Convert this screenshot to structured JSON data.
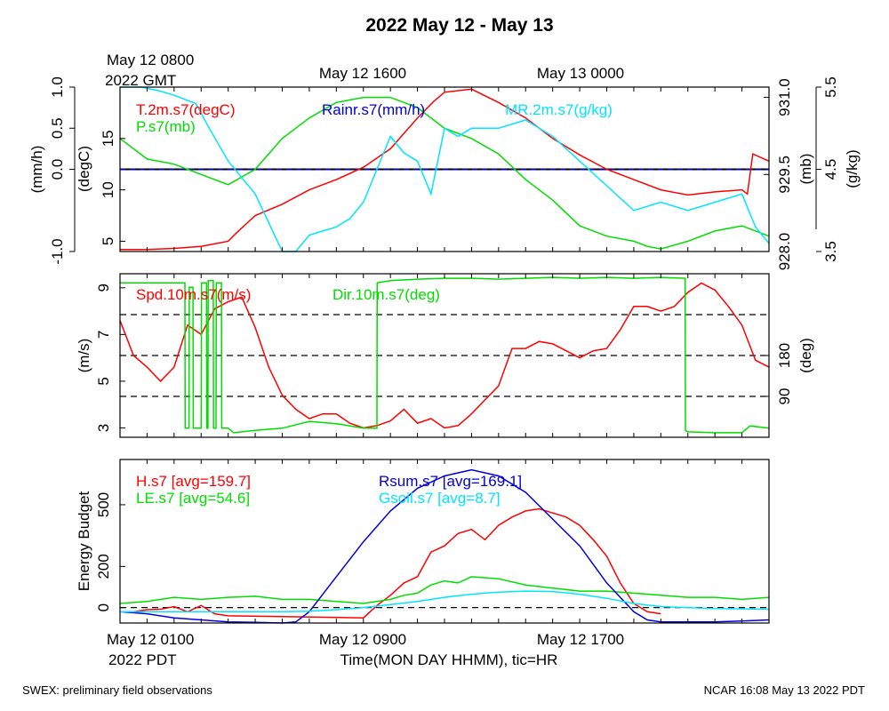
{
  "title": "2022 May 12 - May 13",
  "top_time_labels": {
    "first_line1": "May 12 0800",
    "first_line2": "2022 GMT",
    "second": "May 12 1600",
    "third": "May 13 0000"
  },
  "bottom_time_labels": {
    "first_line1": "May 12 0100",
    "first_line2": "2022 PDT",
    "second": "May 12 0900",
    "third": "May 12 1700"
  },
  "xlabel": "Time(MON DAY HHMM), tic=HR",
  "footer_left": "SWEX: preliminary field observations",
  "footer_right": "NCAR 16:08 May 13 2022 PDT",
  "colors": {
    "red": "#ff0000",
    "green": "#00dd00",
    "blue": "#0000dd",
    "cyan": "#00e5ff",
    "black": "#000000"
  },
  "chart_data": [
    {
      "type": "line",
      "panel": "top",
      "x_unit": "hours since May 12 0100 PDT",
      "xlim": [
        0,
        24
      ],
      "axes": {
        "rain": {
          "label": "(mm/h)",
          "ylim": [
            -1.0,
            1.0
          ],
          "ticks": [
            "-1.0",
            "0.0",
            "0.5",
            "1.0"
          ]
        },
        "temp": {
          "label": "(degC)",
          "ylim": [
            4,
            20
          ],
          "ticks": [
            "5",
            "10",
            "15"
          ]
        },
        "pres": {
          "label": "(mb)",
          "ylim": [
            928.0,
            931.2
          ],
          "ticks": [
            "928.0",
            "929.5",
            "931.0"
          ]
        },
        "mr": {
          "label": "(g/kg)",
          "ylim": [
            3.5,
            5.5
          ],
          "ticks": [
            "3.5",
            "4.5",
            "5.5"
          ]
        }
      },
      "series": [
        {
          "name": "T.2m.s7(degC)",
          "color": "red",
          "axis": "temp",
          "x": [
            0,
            1,
            2,
            3,
            4,
            4.3,
            5,
            6,
            7,
            8,
            9,
            10,
            11,
            11.6,
            12,
            13,
            14,
            15,
            16,
            17,
            18,
            19,
            20,
            21,
            22,
            23,
            23.2,
            23.4,
            24
          ],
          "y": [
            4.2,
            4.2,
            4.3,
            4.5,
            5,
            5.8,
            7.5,
            8.6,
            10,
            11,
            12.2,
            14,
            17,
            18.6,
            19.5,
            19.8,
            18.5,
            17,
            15,
            13.4,
            12,
            11,
            10,
            9.5,
            9.8,
            10,
            9.6,
            13.5,
            12.8
          ]
        },
        {
          "name": "P.s7(mb)",
          "color": "green",
          "axis": "pres",
          "x": [
            0,
            1,
            2,
            3,
            4,
            5,
            6,
            7,
            8,
            9,
            10,
            11,
            12,
            13,
            14,
            15,
            16,
            17,
            18,
            19,
            19.5,
            20,
            21,
            22,
            23,
            24
          ],
          "y": [
            930.2,
            929.8,
            929.7,
            929.5,
            929.3,
            929.6,
            930.2,
            930.6,
            930.9,
            931.0,
            931.0,
            930.8,
            930.4,
            930.2,
            929.9,
            929.4,
            929.0,
            928.5,
            928.3,
            928.2,
            928.1,
            928.05,
            928.2,
            928.4,
            928.5,
            928.3
          ]
        },
        {
          "name": "Rainr.s7(mm/h)",
          "color": "blue",
          "axis": "rain",
          "x": [
            0,
            24
          ],
          "y": [
            0,
            0
          ]
        },
        {
          "name": "MR.2m.s7(g/kg)",
          "color": "cyan",
          "axis": "mr",
          "x": [
            0,
            0.8,
            1.5,
            2,
            2.8,
            3.3,
            4,
            5,
            6,
            6.5,
            7,
            7.5,
            8,
            8.5,
            9,
            9.5,
            10,
            10.5,
            11,
            11.5,
            12,
            12.5,
            13,
            14,
            15,
            16,
            17,
            18,
            19,
            20,
            21,
            22,
            23,
            23.5,
            24
          ],
          "y": [
            5.5,
            5.5,
            5.45,
            5.4,
            5.3,
            5.0,
            4.6,
            4.2,
            3.5,
            3.5,
            3.7,
            3.75,
            3.8,
            3.9,
            4.1,
            4.5,
            4.9,
            4.7,
            4.6,
            4.2,
            5.0,
            4.9,
            5.0,
            5.0,
            5.1,
            4.9,
            4.6,
            4.3,
            4.0,
            4.1,
            4.0,
            4.1,
            4.2,
            3.8,
            3.6
          ]
        }
      ]
    },
    {
      "type": "line",
      "panel": "middle",
      "x_unit": "hours since May 12 0100 PDT",
      "xlim": [
        0,
        24
      ],
      "axes": {
        "spd": {
          "label": "(m/s)",
          "ylim": [
            2.6,
            9.6
          ],
          "ticks": [
            "3",
            "5",
            "7",
            "9"
          ]
        },
        "dir": {
          "label": "(deg)",
          "ylim": [
            0,
            360
          ],
          "ticks": [
            "90",
            "180"
          ]
        }
      },
      "reference_lines": {
        "dir_deg": [
          90,
          180,
          270
        ]
      },
      "series": [
        {
          "name": "Spd.10m.s7(m/s)",
          "color": "red",
          "axis": "spd",
          "x": [
            0,
            0.5,
            1,
            1.5,
            2,
            2.5,
            3,
            3.5,
            4,
            4.5,
            5,
            5.5,
            6,
            6.5,
            7,
            7.5,
            8,
            8.5,
            9,
            9.5,
            10,
            10.5,
            11,
            11.5,
            12,
            12.5,
            13,
            13.5,
            14,
            14.5,
            15,
            15.5,
            16,
            16.5,
            17,
            17.5,
            18,
            18.5,
            19,
            19.5,
            20,
            20.5,
            21,
            21.5,
            22,
            22.5,
            23,
            23.5,
            24
          ],
          "y": [
            7.6,
            6.1,
            5.6,
            5.0,
            5.6,
            7.4,
            7.0,
            8.1,
            8.4,
            8.6,
            7.3,
            5.6,
            4.4,
            3.8,
            3.4,
            3.6,
            3.6,
            3.2,
            3.0,
            3.1,
            3.3,
            3.8,
            3.2,
            3.4,
            3.0,
            3.1,
            3.6,
            4.2,
            4.8,
            6.4,
            6.4,
            6.7,
            6.6,
            6.3,
            6.0,
            6.3,
            6.4,
            7.2,
            8.2,
            8.2,
            8.0,
            8.2,
            8.8,
            9.2,
            8.9,
            8.2,
            7.4,
            5.9,
            5.6
          ]
        },
        {
          "name": "Dir.10m.s7(deg)",
          "color": "green",
          "axis": "dir",
          "x": [
            0,
            2.4,
            2.41,
            2.55,
            2.56,
            2.7,
            2.71,
            3,
            3.01,
            3.2,
            3.21,
            3.25,
            3.26,
            3.45,
            3.46,
            3.55,
            3.56,
            3.75,
            3.76,
            4,
            4.2,
            5,
            6,
            7,
            8,
            9,
            9.5,
            9.51,
            10,
            11,
            12,
            13,
            14,
            15,
            16,
            17,
            18,
            19,
            20,
            20.9,
            20.91,
            21,
            22,
            23,
            23.3,
            24
          ],
          "y": [
            340,
            340,
            20,
            20,
            330,
            330,
            20,
            20,
            340,
            340,
            20,
            20,
            345,
            345,
            20,
            20,
            340,
            340,
            20,
            20,
            10,
            15,
            20,
            35,
            30,
            20,
            20,
            340,
            345,
            348,
            350,
            350,
            348,
            350,
            352,
            350,
            352,
            350,
            352,
            350,
            15,
            12,
            10,
            10,
            25,
            20
          ]
        }
      ]
    },
    {
      "type": "line",
      "panel": "bottom",
      "x_unit": "hours since May 12 0100 PDT",
      "xlim": [
        0,
        24
      ],
      "ylabel": "Energy Budget",
      "ylim": [
        -75,
        720
      ],
      "yticks": [
        "0",
        "200",
        "500"
      ],
      "series": [
        {
          "name": "H.s7 [avg=159.7]",
          "color": "red",
          "x": [
            0.5,
            1,
            1.5,
            2,
            2.5,
            3,
            3.5,
            4,
            9,
            9.5,
            10,
            10.5,
            11,
            11.5,
            12,
            12.5,
            13,
            13.5,
            14,
            14.5,
            15,
            15.5,
            16,
            16.5,
            17,
            17.5,
            18,
            18.5,
            19,
            19.5,
            20
          ],
          "y": [
            -20,
            -10,
            -8,
            5,
            -20,
            10,
            -30,
            -40,
            -50,
            10,
            60,
            120,
            150,
            270,
            300,
            360,
            380,
            330,
            400,
            440,
            470,
            480,
            460,
            440,
            400,
            330,
            250,
            120,
            20,
            -20,
            -30
          ]
        },
        {
          "name": "LE.s7 [avg=54.6]",
          "color": "green",
          "x": [
            0,
            1,
            2,
            3,
            4,
            5,
            6,
            7,
            8,
            9,
            10,
            10.5,
            11,
            11.5,
            12,
            12.5,
            13,
            14,
            15,
            16,
            17,
            18,
            19,
            20,
            21,
            22,
            23,
            24
          ],
          "y": [
            20,
            30,
            50,
            40,
            50,
            55,
            40,
            40,
            30,
            20,
            40,
            60,
            70,
            110,
            130,
            120,
            150,
            140,
            110,
            95,
            80,
            80,
            70,
            60,
            50,
            50,
            40,
            50
          ]
        },
        {
          "name": "Rsum.s7 [avg=169.1]",
          "color": "blue",
          "x": [
            0,
            1,
            2,
            3,
            4,
            5,
            6,
            6.5,
            7,
            8,
            9,
            10,
            11,
            12,
            13,
            14,
            15,
            16,
            17,
            18,
            19,
            19.5,
            20,
            21,
            22,
            23,
            24
          ],
          "y": [
            -20,
            -30,
            -50,
            -60,
            -70,
            -72,
            -75,
            -70,
            -20,
            150,
            320,
            470,
            580,
            640,
            670,
            640,
            560,
            430,
            300,
            120,
            -20,
            -60,
            -70,
            -70,
            -70,
            -65,
            -60
          ]
        },
        {
          "name": "Gsoil.s7 [avg=8.7]",
          "color": "cyan",
          "x": [
            0,
            2,
            4,
            6,
            7,
            8,
            9,
            10,
            11,
            12,
            13,
            14,
            15,
            16,
            17,
            18,
            19,
            20,
            22,
            24
          ],
          "y": [
            -20,
            -20,
            -20,
            -20,
            -18,
            -10,
            0,
            15,
            30,
            50,
            65,
            75,
            80,
            78,
            65,
            45,
            20,
            5,
            -5,
            -8
          ]
        }
      ]
    }
  ]
}
